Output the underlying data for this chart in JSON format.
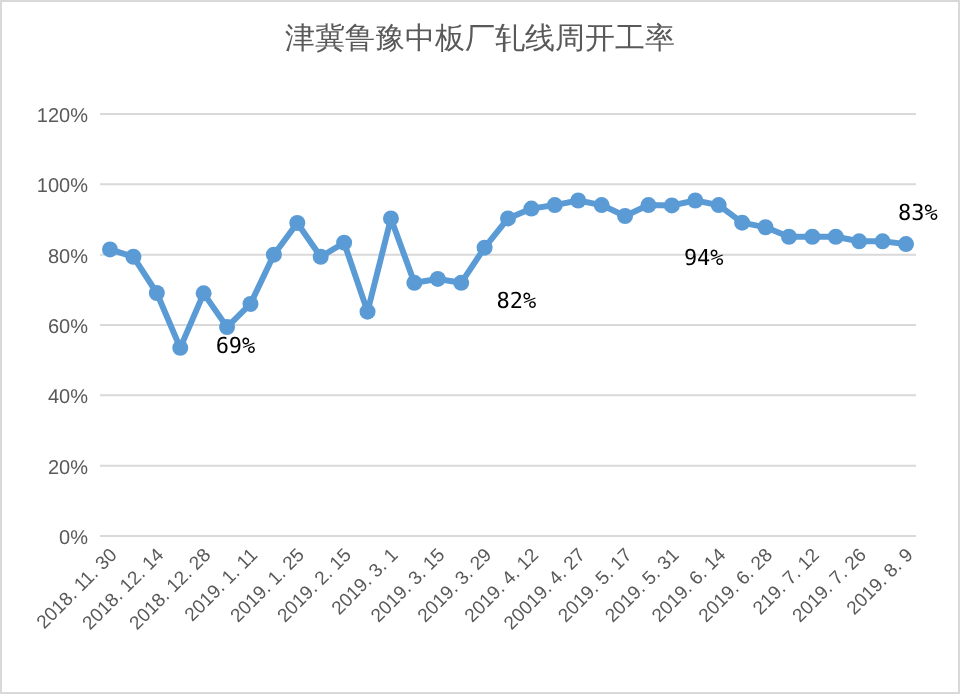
{
  "chart_data": {
    "type": "line",
    "title": "津冀鲁豫中板厂轧线周开工率",
    "categories": [
      "2018. 11. 30",
      null,
      "2018. 12. 14",
      null,
      "2018. 12. 28",
      null,
      "2019. 1. 11",
      null,
      "2019. 1. 25",
      null,
      "2019. 2. 15",
      null,
      "2019. 3. 1",
      null,
      "2019. 3. 15",
      null,
      "2019. 3. 29",
      null,
      "2019. 4. 12",
      null,
      "20019. 4. 27",
      null,
      "2019. 5. 17",
      null,
      "2019. 5. 31",
      null,
      "2019. 6. 14",
      null,
      "2019. 6. 28",
      null,
      "219. 7. 12",
      null,
      "2019. 7. 26",
      null,
      "2019. 8. 9"
    ],
    "series": [
      {
        "color": "#5b9bd5",
        "values": [
          81.5,
          79.4,
          69.1,
          53.5,
          69,
          59.4,
          66,
          80,
          89,
          79.4,
          83.4,
          63.8,
          90.3,
          72,
          73.1,
          72,
          82,
          90.3,
          93.1,
          94.1,
          95.4,
          94.1,
          91,
          94.1,
          94,
          95.4,
          94.1,
          89.1,
          87.8,
          85.1,
          85.1,
          85.1,
          83.8,
          83.8,
          83
        ],
        "value_labels": [
          null,
          null,
          null,
          null,
          "69%",
          null,
          null,
          null,
          null,
          null,
          null,
          null,
          null,
          null,
          null,
          null,
          "82%",
          null,
          null,
          null,
          null,
          null,
          null,
          null,
          "94%",
          null,
          null,
          null,
          null,
          null,
          null,
          null,
          null,
          null,
          "83%"
        ]
      }
    ],
    "ylim": [
      0,
      120
    ],
    "yticks": [
      {
        "value": 0,
        "label": "0%"
      },
      {
        "value": 20,
        "label": "20%"
      },
      {
        "value": 40,
        "label": "40%"
      },
      {
        "value": 60,
        "label": "60%"
      },
      {
        "value": 80,
        "label": "80%"
      },
      {
        "value": 100,
        "label": "100%"
      },
      {
        "value": 120,
        "label": "120%"
      }
    ],
    "grid": "y",
    "marker": "circle",
    "line_style": "solid"
  }
}
